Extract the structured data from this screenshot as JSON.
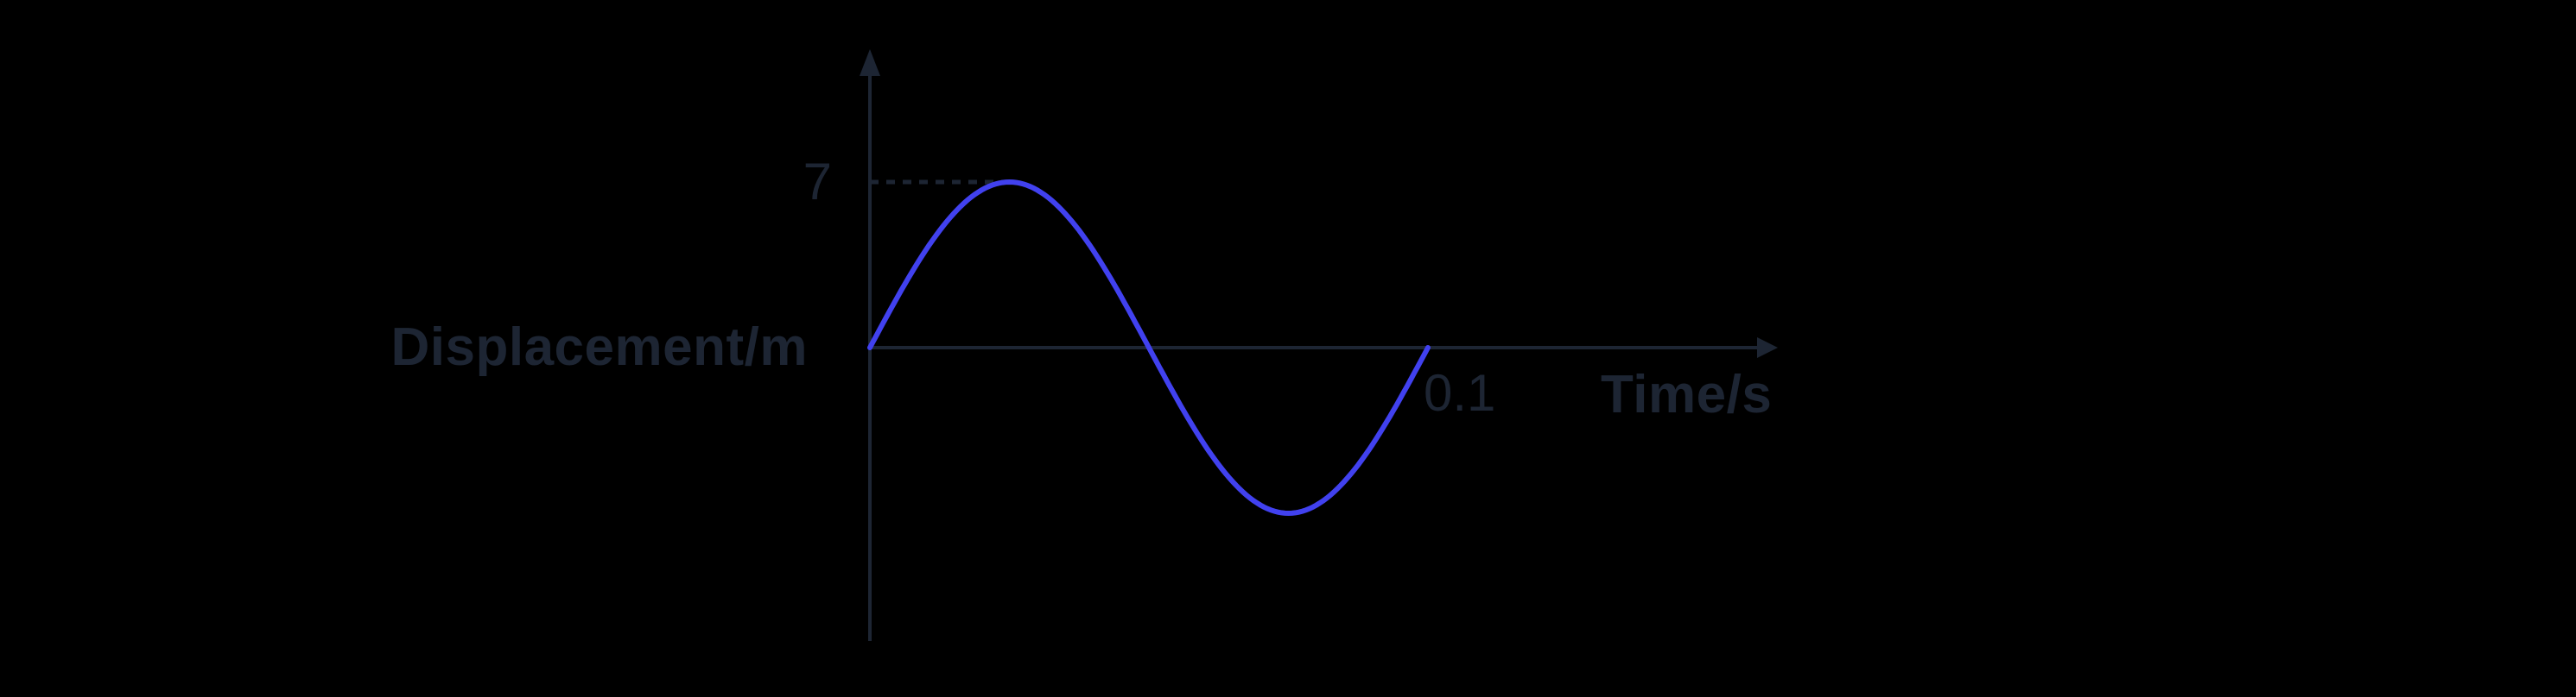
{
  "chart_data": {
    "type": "line",
    "title": "",
    "xlabel": "Time/s",
    "ylabel": "Displacement/m",
    "x_tick_labels": [
      "0.1"
    ],
    "y_tick_labels": [
      "7"
    ],
    "amplitude_m": 7,
    "period_s": 0.1,
    "function": "displacement = 7 * sin(2*pi*t / 0.1)",
    "x_range": [
      0,
      0.1
    ],
    "y_range": [
      -7,
      7
    ],
    "grid": false,
    "legend": false,
    "series": [
      {
        "name": "displacement",
        "x": [
          0,
          0.0125,
          0.025,
          0.0375,
          0.05,
          0.0625,
          0.075,
          0.0875,
          0.1
        ],
        "y": [
          0,
          4.95,
          7,
          4.95,
          0,
          -4.95,
          -7,
          -4.95,
          0
        ]
      }
    ],
    "annotations": [
      {
        "type": "dashed-guide-line",
        "from_xy": [
          0,
          7
        ],
        "to_xy": [
          0.025,
          7
        ],
        "note": "horizontal dashed line from y-axis tick 7 to the first crest of the wave"
      }
    ]
  },
  "labels": {
    "y_axis_title": "Displacement/m",
    "x_axis_title": "Time/s",
    "y_tick": "7",
    "x_tick": "0.1"
  },
  "colors": {
    "background": "#000000",
    "ink": "#1d2533",
    "curve": "#4141ef"
  }
}
